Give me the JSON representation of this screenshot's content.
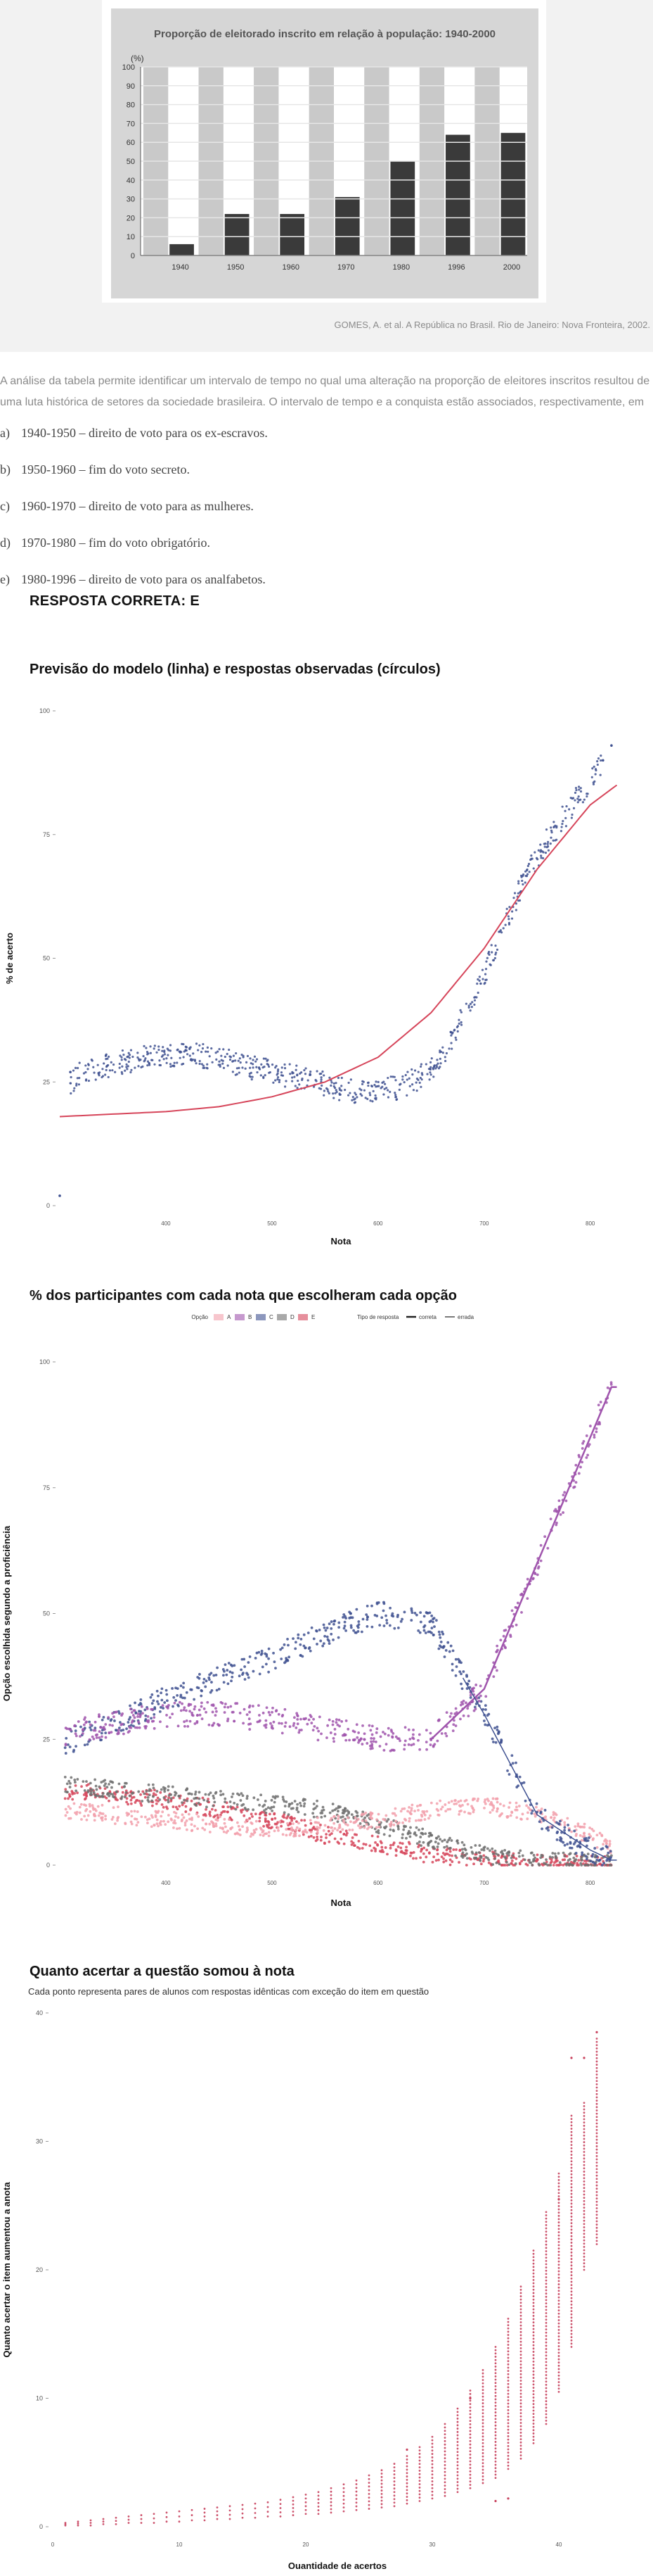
{
  "image_chart": {
    "title": "Proporção de eleitorado inscrito em relação à população: 1940-2000",
    "unit": "(%)",
    "source": "GOMES, A. et al. A República no Brasil. Rio de Janeiro: Nova Fronteira, 2002."
  },
  "question_text": "A análise da tabela permite identificar um intervalo de tempo no qual uma alteração na proporção de eleitores inscritos resultou de uma luta histórica de setores da sociedade brasileira. O intervalo de tempo e a conquista estão associados, respectivamente, em",
  "options": [
    {
      "letter": "a)",
      "text": "1940-1950 – direito de voto para os ex-escravos."
    },
    {
      "letter": "b)",
      "text": "1950-1960 – fim do voto secreto."
    },
    {
      "letter": "c)",
      "text": "1960-1970 – direito de voto para as mulheres."
    },
    {
      "letter": "d)",
      "text": "1970-1980 – fim do voto obrigatório."
    },
    {
      "letter": "e)",
      "text": "1980-1996 – direito de voto para os analfabetos."
    }
  ],
  "answer_label": "RESPOSTA CORRETA: E",
  "colors": {
    "bar": "#3a3a3a",
    "panel": "#c9c9c9",
    "model_line": "#d6455a",
    "observed": "#3f5191",
    "A": "#f2a0ab",
    "B": "#a055ad",
    "C": "#3f5191",
    "D": "#6f6f6f",
    "E": "#d6455a",
    "gain": "#c8435e"
  },
  "chart_data": [
    {
      "type": "bar",
      "title": "Proporção de eleitorado inscrito em relação à população: 1940-2000",
      "ylabel": "(%)",
      "categories": [
        "1940",
        "1950",
        "1960",
        "1970",
        "1980",
        "1996",
        "2000"
      ],
      "values": [
        6,
        22,
        22,
        31,
        50,
        64,
        65
      ],
      "ylim": [
        0,
        100
      ],
      "yticks": [
        "0",
        "10",
        "20",
        "30",
        "40",
        "50",
        "60",
        "70",
        "80",
        "90",
        "100"
      ],
      "grid": true
    },
    {
      "type": "line",
      "title": "Previsão do modelo (linha) e respostas observadas (círculos)",
      "xlabel": "Nota",
      "ylabel": "% de acerto",
      "xlim": [
        300,
        830
      ],
      "ylim": [
        0,
        100
      ],
      "xticks": [
        "400",
        "500",
        "600",
        "700",
        "800"
      ],
      "yticks": [
        "0",
        "25",
        "50",
        "75",
        "100"
      ],
      "series": [
        {
          "kind": "line",
          "x": [
            300,
            350,
            400,
            450,
            500,
            550,
            600,
            650,
            700,
            750,
            800,
            825
          ],
          "y": [
            18,
            18.5,
            19,
            20,
            22,
            25,
            30,
            39,
            52,
            68,
            81,
            85
          ]
        },
        {
          "kind": "scatter",
          "x": [
            300,
            310,
            320,
            340,
            360,
            380,
            400,
            420,
            440,
            460,
            480,
            500,
            520,
            540,
            560,
            580,
            600,
            620,
            640,
            660,
            680,
            700,
            720,
            740,
            760,
            780,
            800,
            820
          ],
          "y": [
            2,
            25,
            27,
            28,
            29,
            30,
            30,
            31,
            30,
            29,
            28,
            27,
            26,
            25,
            24,
            23,
            23,
            24,
            26,
            30,
            38,
            47,
            57,
            67,
            74,
            80,
            86,
            91
          ]
        }
      ]
    },
    {
      "type": "line",
      "title": "% dos participantes com cada nota que escolheram cada opção",
      "xlabel": "Nota",
      "ylabel": "Opção escolhida segundo a proficiência",
      "legend": {
        "option_title": "Opção",
        "options": [
          "A",
          "B",
          "C",
          "D",
          "E"
        ],
        "type_title": "Tipo de resposta",
        "types": [
          "correta",
          "errada"
        ],
        "placement": "top"
      },
      "xlim": [
        300,
        830
      ],
      "ylim": [
        0,
        100
      ],
      "xticks": [
        "400",
        "500",
        "600",
        "700",
        "800"
      ],
      "yticks": [
        "0",
        "25",
        "50",
        "75",
        "100"
      ],
      "x": [
        300,
        350,
        400,
        450,
        500,
        550,
        600,
        650,
        700,
        750,
        800,
        820
      ],
      "series": [
        {
          "name": "A",
          "values": [
            11,
            10,
            9,
            8,
            7,
            8,
            9,
            11,
            12,
            10,
            6,
            3
          ]
        },
        {
          "name": "B",
          "values": [
            26,
            28,
            30,
            30,
            29,
            27,
            25,
            25,
            35,
            60,
            85,
            95
          ]
        },
        {
          "name": "C",
          "values": [
            24,
            28,
            33,
            37,
            41,
            46,
            50,
            48,
            30,
            10,
            3,
            1
          ]
        },
        {
          "name": "D",
          "values": [
            16,
            15,
            14,
            13,
            12,
            11,
            8,
            5,
            2,
            1,
            0.5,
            0.2
          ]
        },
        {
          "name": "E",
          "values": [
            15,
            14,
            13,
            11,
            9,
            6,
            4,
            2,
            1,
            0.5,
            0.2,
            0.1
          ]
        }
      ]
    },
    {
      "type": "scatter",
      "title": "Quanto acertar a questão somou à nota",
      "subtitle": "Cada ponto representa pares de alunos com respostas idênticas com exceção do item em questão",
      "xlabel": "Quantidade de acertos",
      "ylabel": "Quanto acertar o item aumentou a anota",
      "xlim": [
        0,
        45
      ],
      "ylim": [
        0,
        40
      ],
      "xticks": [
        "0",
        "10",
        "20",
        "30",
        "40"
      ],
      "yticks": [
        "0",
        "10",
        "20",
        "30",
        "40"
      ],
      "x": [
        1,
        2,
        3,
        4,
        5,
        6,
        7,
        8,
        9,
        10,
        11,
        12,
        13,
        14,
        15,
        16,
        17,
        18,
        19,
        20,
        21,
        22,
        23,
        24,
        25,
        26,
        27,
        28,
        29,
        30,
        31,
        32,
        33,
        34,
        35,
        36,
        37,
        38,
        39,
        40,
        41,
        42,
        43
      ],
      "ymin": [
        0.1,
        0.1,
        0.1,
        0.2,
        0.2,
        0.3,
        0.3,
        0.3,
        0.4,
        0.4,
        0.5,
        0.5,
        0.6,
        0.6,
        0.7,
        0.7,
        0.8,
        0.8,
        0.9,
        1.0,
        1.0,
        1.1,
        1.2,
        1.3,
        1.4,
        1.5,
        1.6,
        1.8,
        2.0,
        2.2,
        2.4,
        2.7,
        3.0,
        3.4,
        3.8,
        4.5,
        5.3,
        6.5,
        8.0,
        10.5,
        14,
        20,
        22
      ],
      "ymax": [
        0.3,
        0.4,
        0.5,
        0.6,
        0.7,
        0.8,
        0.9,
        1.0,
        1.1,
        1.2,
        1.3,
        1.4,
        1.5,
        1.6,
        1.7,
        1.8,
        1.9,
        2.1,
        2.3,
        2.5,
        2.7,
        3.0,
        3.3,
        3.6,
        4.0,
        4.4,
        4.9,
        5.5,
        6.2,
        7.0,
        8.0,
        9.2,
        10.6,
        12.2,
        14,
        16.2,
        18.7,
        21.5,
        24.5,
        27.5,
        32,
        33,
        38
      ],
      "outliers": [
        {
          "x": 28,
          "y": 6.0
        },
        {
          "x": 33,
          "y": 10.0
        },
        {
          "x": 35,
          "y": 2.0
        },
        {
          "x": 36,
          "y": 2.2
        },
        {
          "x": 40,
          "y": 25.5
        },
        {
          "x": 41,
          "y": 36.5
        },
        {
          "x": 43,
          "y": 38.5
        },
        {
          "x": 42,
          "y": 36.5
        }
      ]
    }
  ]
}
